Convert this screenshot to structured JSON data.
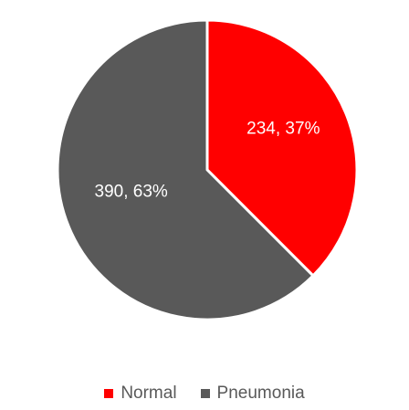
{
  "colors": {
    "normal": "#ff0000",
    "pneumonia": "#595959",
    "slice_border": "#ffffff"
  },
  "chart_data": {
    "type": "pie",
    "title": "",
    "categories": [
      "Normal",
      "Pneumonia"
    ],
    "values": [
      234,
      390
    ],
    "percentages": [
      "37%",
      "63%"
    ],
    "data_labels": [
      "234, 37%",
      "390, 63%"
    ],
    "legend_position": "bottom",
    "start_angle": "12 o'clock, clockwise"
  }
}
